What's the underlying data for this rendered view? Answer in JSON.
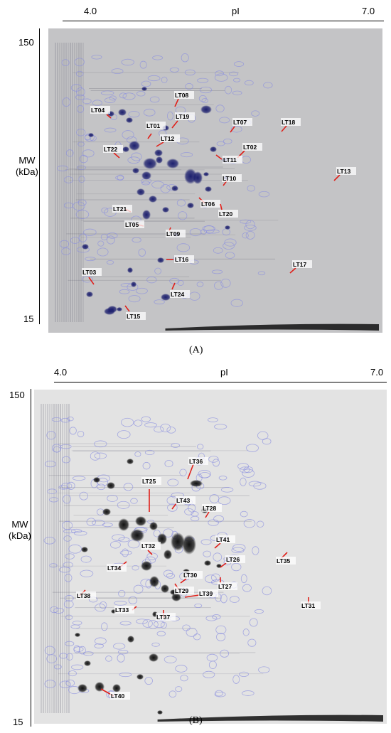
{
  "panels": [
    {
      "label": "(A)",
      "x_axis": {
        "left": "4.0",
        "center": "pI",
        "right": "7.0"
      },
      "y_axis": {
        "title": "MW\n(kDa)",
        "top": "150",
        "bottom": "15"
      },
      "spot_labels": [
        "LT01",
        "LT02",
        "LT03",
        "LT04",
        "LT05",
        "LT06",
        "LT07",
        "LT08",
        "LT09",
        "LT10",
        "LT11",
        "LT12",
        "LT13",
        "LT15",
        "LT16",
        "LT17",
        "LT18",
        "LT19",
        "LT20",
        "LT21",
        "LT22",
        "LT24"
      ]
    },
    {
      "label": "(B)",
      "x_axis": {
        "left": "4.0",
        "center": "pI",
        "right": "7.0"
      },
      "y_axis": {
        "title": "MW\n(kDa)",
        "top": "150",
        "bottom": "15"
      },
      "spot_labels": [
        "LT25",
        "LT26",
        "LT27",
        "LT28",
        "LT29",
        "LT30",
        "LT31",
        "LT32",
        "LT33",
        "LT34",
        "LT35",
        "LT36",
        "LT37",
        "LT38",
        "LT39",
        "LT40",
        "LT41",
        "LT43"
      ]
    }
  ],
  "colors": {
    "gel_a_bg": "#c4c4c6",
    "gel_b_bg": "#e3e3e3",
    "spot_a": "#1c1f6e",
    "spot_b": "#111111",
    "outline": "#8a8fe0",
    "leader": "#e0201a"
  }
}
